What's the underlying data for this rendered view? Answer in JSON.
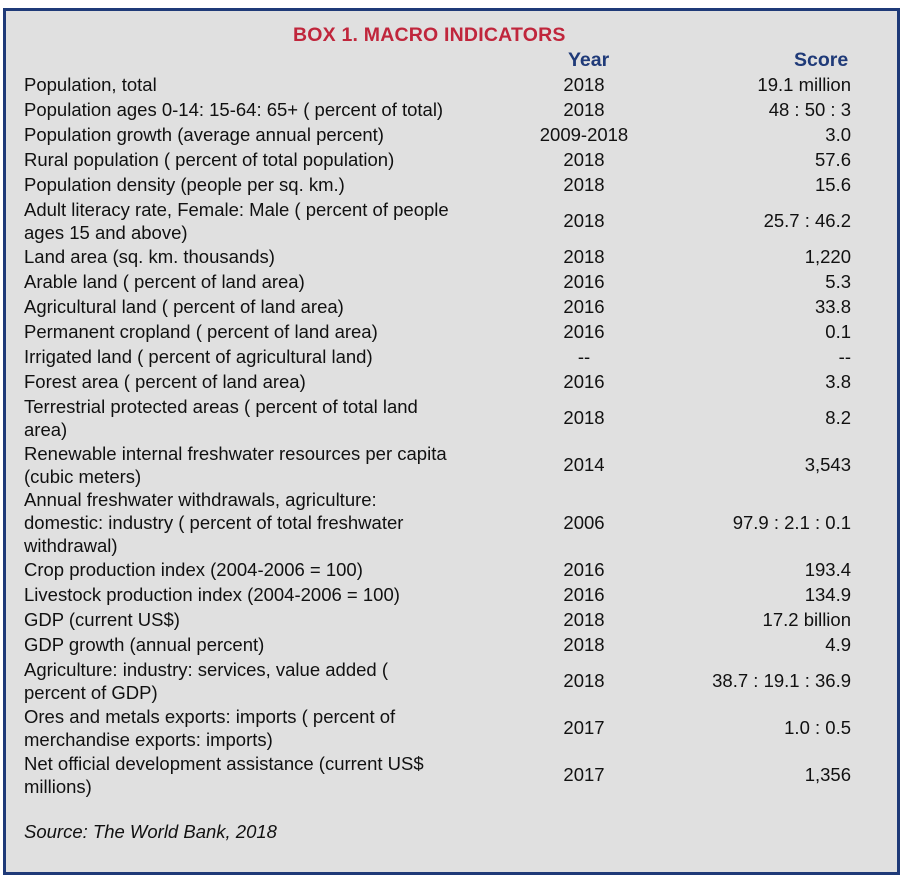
{
  "title": "BOX 1.  MACRO INDICATORS",
  "headers": {
    "year": "Year",
    "score": "Score"
  },
  "rows": [
    {
      "indicator": "Population, total",
      "year": "2018",
      "score": "19.1 million",
      "lines": 1
    },
    {
      "indicator": "Population ages 0-14: 15-64: 65+ ( percent of total)",
      "year": "2018",
      "score": "48 : 50 : 3",
      "lines": 1
    },
    {
      "indicator": "Population growth (average annual  percent)",
      "year": "2009-2018",
      "score": "3.0",
      "lines": 1
    },
    {
      "indicator": "Rural population ( percent of total population)",
      "year": "2018",
      "score": "57.6",
      "lines": 1
    },
    {
      "indicator": "Population density (people per sq.  km.)",
      "year": "2018",
      "score": "15.6",
      "lines": 1
    },
    {
      "indicator": "Adult literacy rate, Female: Male ( percent of people\nages 15 and above)",
      "year": "2018",
      "score": "25.7 : 46.2",
      "lines": 2
    },
    {
      "indicator": "Land area (sq.  km.  thousands)",
      "year": "2018",
      "score": "1,220",
      "lines": 1
    },
    {
      "indicator": "Arable land ( percent of land area)",
      "year": "2016",
      "score": "5.3",
      "lines": 1
    },
    {
      "indicator": "Agricultural land ( percent of land area)",
      "year": "2016",
      "score": "33.8",
      "lines": 1
    },
    {
      "indicator": "Permanent cropland ( percent of land area)",
      "year": "2016",
      "score": "0.1",
      "lines": 1
    },
    {
      "indicator": "Irrigated land ( percent of agricultural land)",
      "year": "--",
      "score": "--",
      "lines": 1
    },
    {
      "indicator": "Forest area ( percent of land area)",
      "year": "2016",
      "score": "3.8",
      "lines": 1
    },
    {
      "indicator": "Terrestrial protected areas ( percent of total land\narea)",
      "year": "2018",
      "score": "8.2",
      "lines": 2
    },
    {
      "indicator": "Renewable internal freshwater resources per capita\n(cubic meters)",
      "year": "2014",
      "score": "3,543",
      "lines": 2
    },
    {
      "indicator": "Annual freshwater withdrawals, agriculture:\ndomestic: industry ( percent of total freshwater\nwithdrawal)",
      "year": "2006",
      "score": "97.9 : 2.1 : 0.1",
      "lines": 3
    },
    {
      "indicator": "Crop production index (2004-2006 = 100)",
      "year": "2016",
      "score": "193.4",
      "lines": 1
    },
    {
      "indicator": "Livestock production index (2004-2006 = 100)",
      "year": "2016",
      "score": "134.9",
      "lines": 1
    },
    {
      "indicator": "GDP (current US$)",
      "year": "2018",
      "score": "17.2 billion",
      "lines": 1
    },
    {
      "indicator": "GDP growth (annual  percent)",
      "year": "2018",
      "score": "4.9",
      "lines": 1
    },
    {
      "indicator": "Agriculture: industry: services, value added (\npercent of GDP)",
      "year": "2018",
      "score": "38.7 : 19.1 : 36.9",
      "lines": 2
    },
    {
      "indicator": "Ores and metals exports: imports ( percent of\nmerchandise exports: imports)",
      "year": "2017",
      "score": "1.0 : 0.5",
      "lines": 2
    },
    {
      "indicator": "Net official development assistance (current US$\nmillions)",
      "year": "2017",
      "score": "1,356",
      "lines": 2
    }
  ],
  "source": "Source: The World Bank, 2018",
  "colors": {
    "border": "#1f3a78",
    "title": "#c0263c",
    "header": "#1f3a78",
    "background": "#e0e0e0"
  }
}
